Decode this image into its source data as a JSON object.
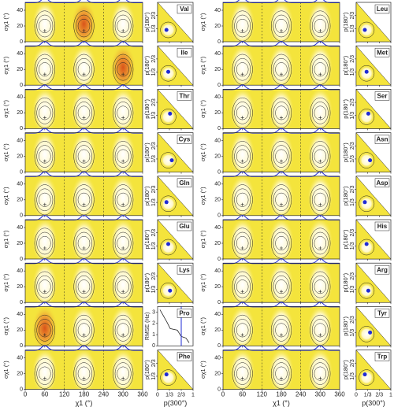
{
  "chart_data": {
    "type": "contour",
    "residues_left": [
      "Val",
      "Ile",
      "Thr",
      "Cys",
      "Gln",
      "Glu",
      "Lys",
      "Pro",
      "Phe"
    ],
    "residues_right": [
      "Leu",
      "Met",
      "Ser",
      "Asn",
      "Asp",
      "His",
      "Arg",
      "Tyr",
      "Trp"
    ],
    "contour_axes": {
      "xlabel": "χ1 (°)",
      "ylabel": "σχ1 (°)",
      "xlim": [
        0,
        360
      ],
      "xticks": [
        0,
        60,
        120,
        180,
        240,
        300,
        360
      ],
      "ylim": [
        0,
        50
      ],
      "yticks": [
        0,
        20,
        40
      ]
    },
    "triangle_axes": {
      "xlabel": "p(300°)",
      "ylabel": "p(180°)",
      "xlim": [
        0,
        1
      ],
      "ylim": [
        0,
        1
      ],
      "xticks": [
        0,
        {
          "value": 0.3333,
          "label": "1/3"
        },
        {
          "value": 0.6667,
          "label": "2/3"
        },
        1
      ],
      "yticks": [
        {
          "value": 0.3333,
          "label": "1/3"
        },
        {
          "value": 0.6667,
          "label": "2/3"
        }
      ]
    },
    "rmse_axes": {
      "ylabel": "RMSE (Hz)",
      "ylim": [
        0,
        3.5
      ],
      "yticks": [
        0,
        1,
        2,
        3
      ]
    }
  }
}
